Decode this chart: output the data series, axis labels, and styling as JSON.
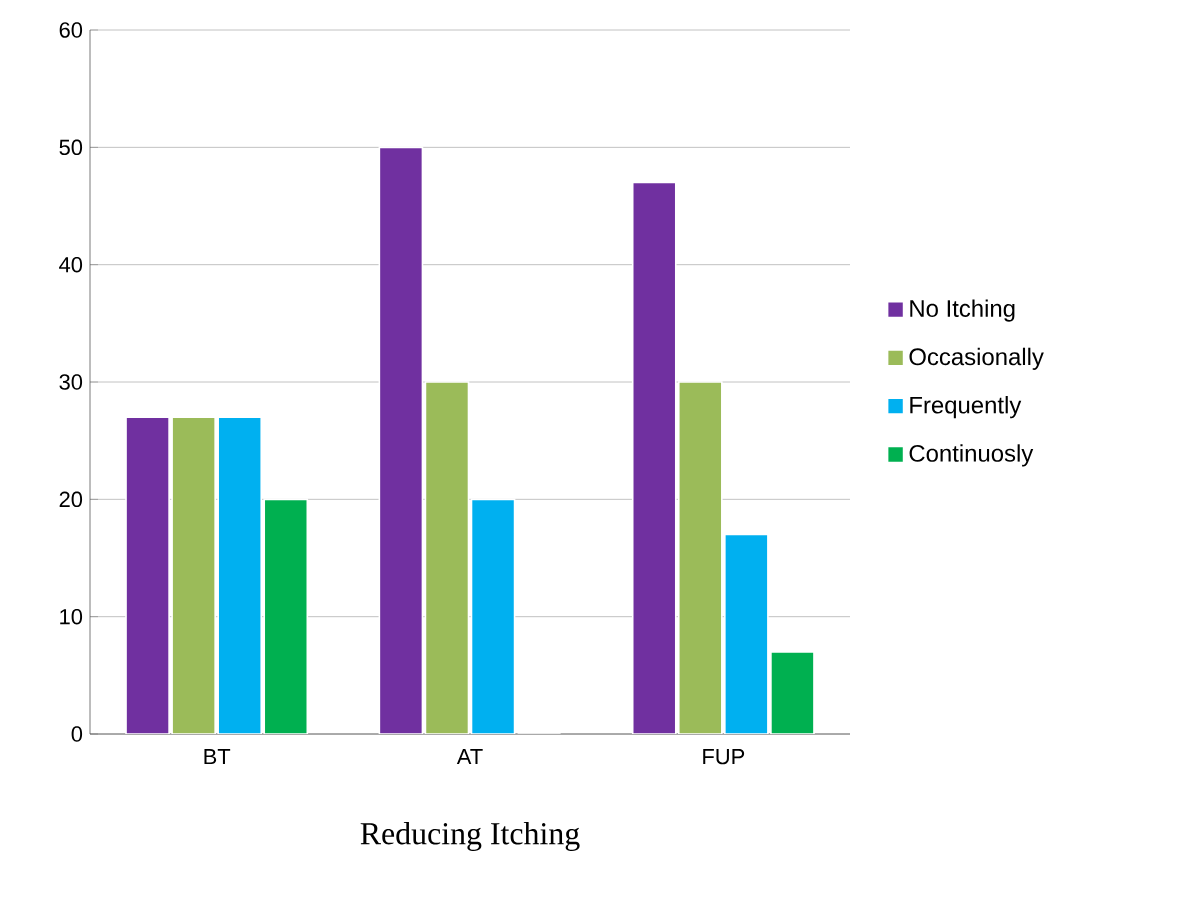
{
  "chart_data": {
    "type": "bar",
    "xlabel": "Reducing Itching",
    "categories": [
      "BT",
      "AT",
      "FUP"
    ],
    "series": [
      {
        "name": "No Itching",
        "color": "#7030a0",
        "values": [
          27,
          50,
          47
        ]
      },
      {
        "name": "Occasionally",
        "color": "#9bbb59",
        "values": [
          27,
          30,
          30
        ]
      },
      {
        "name": "Frequently",
        "color": "#00b0f0",
        "values": [
          27,
          20,
          17
        ]
      },
      {
        "name": "Continuosly",
        "color": "#00b050",
        "values": [
          20,
          0,
          7
        ]
      }
    ],
    "ylim": [
      0,
      60
    ],
    "yticks": [
      0,
      10,
      20,
      30,
      40,
      50,
      60
    ],
    "grid": "y",
    "legend": "right"
  }
}
